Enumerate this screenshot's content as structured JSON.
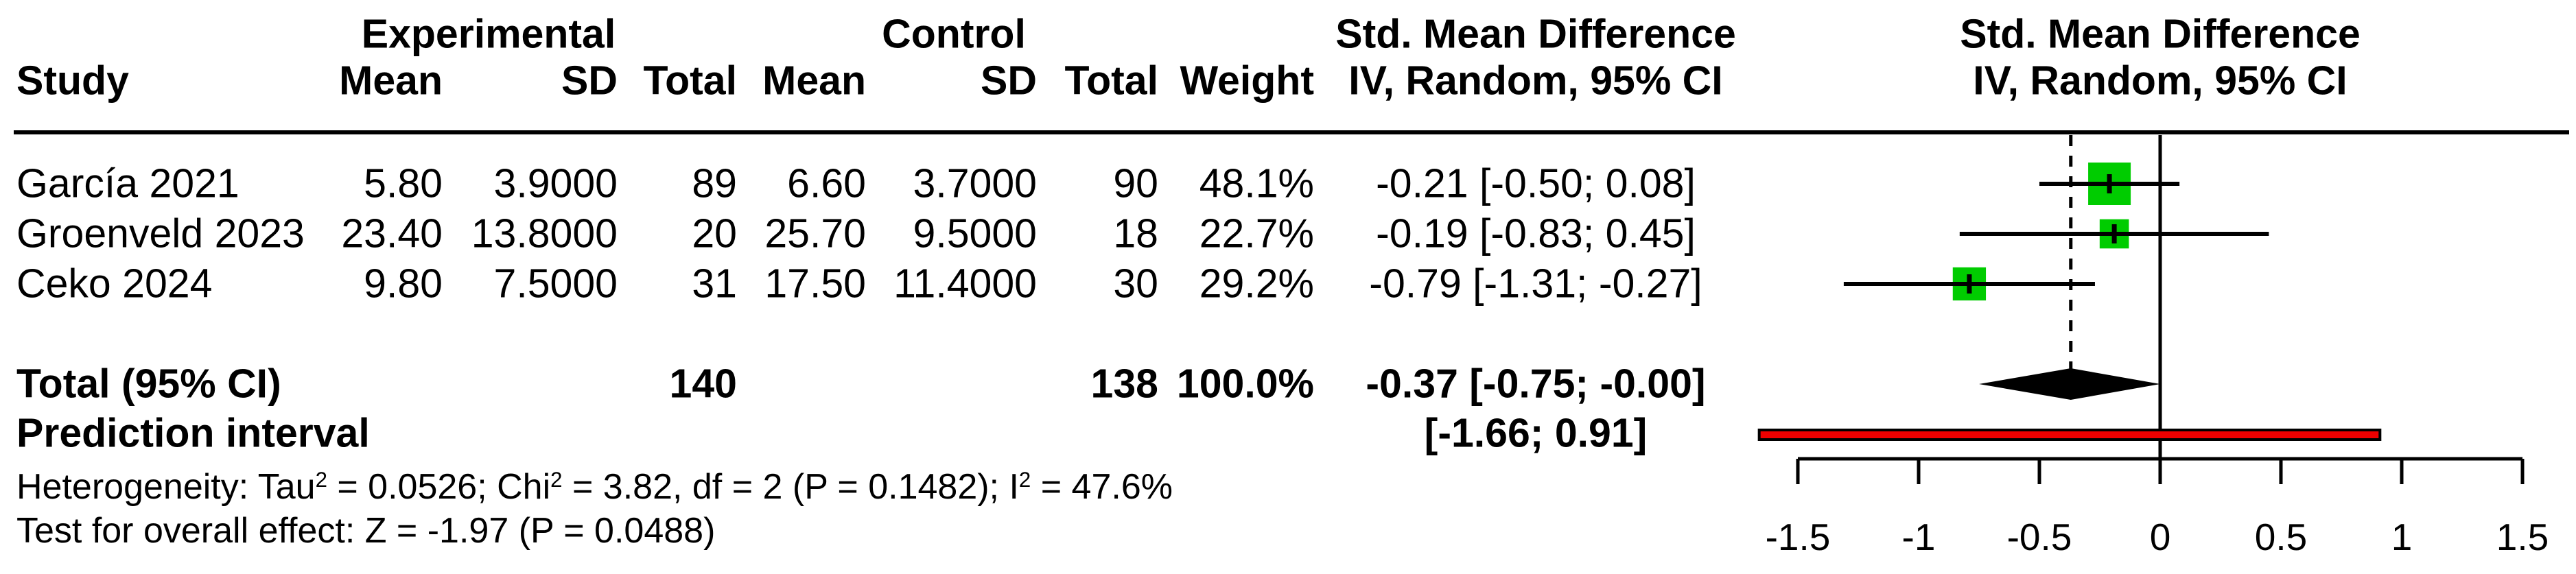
{
  "header": {
    "study": "Study",
    "group_experimental": "Experimental",
    "group_control": "Control",
    "mean": "Mean",
    "sd": "SD",
    "total": "Total",
    "weight": "Weight",
    "smd_title": "Std. Mean Difference",
    "smd_subtitle": "IV, Random, 95% CI",
    "plot_title": "Std. Mean Difference",
    "plot_subtitle": "IV, Random, 95% CI"
  },
  "table": {
    "rows": [
      {
        "study": "García 2021",
        "mean_e": "5.80",
        "sd_e": "3.9000",
        "total_e": "89",
        "mean_c": "6.60",
        "sd_c": "3.7000",
        "total_c": "90",
        "weight": "48.1%",
        "smd_ci": "-0.21 [-0.50; 0.08]"
      },
      {
        "study": "Groenveld 2023",
        "mean_e": "23.40",
        "sd_e": "13.8000",
        "total_e": "20",
        "mean_c": "25.70",
        "sd_c": "9.5000",
        "total_c": "18",
        "weight": "22.7%",
        "smd_ci": "-0.19 [-0.83; 0.45]"
      },
      {
        "study": "Ceko 2024",
        "mean_e": "9.80",
        "sd_e": "7.5000",
        "total_e": "31",
        "mean_c": "17.50",
        "sd_c": "11.4000",
        "total_c": "30",
        "weight": "29.2%",
        "smd_ci": "-0.79 [-1.31; -0.27]"
      }
    ],
    "total": {
      "label": "Total (95% CI)",
      "total_e": "140",
      "total_c": "138",
      "weight": "100.0%",
      "smd_ci": "-0.37 [-0.75; -0.00]"
    },
    "prediction": {
      "label": "Prediction interval",
      "ci": "[-1.66; 0.91]"
    },
    "heterogeneity": {
      "part1": "Heterogeneity: Tau",
      "sup1": "2",
      "part2": " = 0.0526; Chi",
      "sup2": "2",
      "part3": " = 3.82, df = 2 (P = 0.1482); I",
      "sup3": "2",
      "part4": " = 47.6%"
    },
    "overall_effect": "Test for overall effect: Z = -1.97 (P = 0.0488)"
  },
  "chart_data": {
    "type": "forest",
    "effect_measure": "Std. Mean Difference (IV, Random, 95% CI)",
    "studies": [
      {
        "name": "García 2021",
        "estimate": -0.21,
        "ci_low": -0.5,
        "ci_high": 0.08,
        "weight_pct": 48.1
      },
      {
        "name": "Groenveld 2023",
        "estimate": -0.19,
        "ci_low": -0.83,
        "ci_high": 0.45,
        "weight_pct": 22.7
      },
      {
        "name": "Ceko 2024",
        "estimate": -0.79,
        "ci_low": -1.31,
        "ci_high": -0.27,
        "weight_pct": 29.2
      }
    ],
    "pooled": {
      "label": "Total (95% CI)",
      "estimate": -0.37,
      "ci_low": -0.75,
      "ci_high": -0.0
    },
    "prediction_interval": {
      "low": -1.66,
      "high": 0.91
    },
    "null_line": 0,
    "x_axis": {
      "range": [
        -1.5,
        1.5
      ],
      "ticks": [
        -1.5,
        -1,
        -0.5,
        0,
        0.5,
        1,
        1.5
      ],
      "tick_labels": [
        "-1.5",
        "-1",
        "-0.5",
        "0",
        "0.5",
        "1",
        "1.5"
      ]
    },
    "colors": {
      "square": "#00cc00",
      "prediction_bar": "#ee0000",
      "lines": "#000000"
    }
  }
}
